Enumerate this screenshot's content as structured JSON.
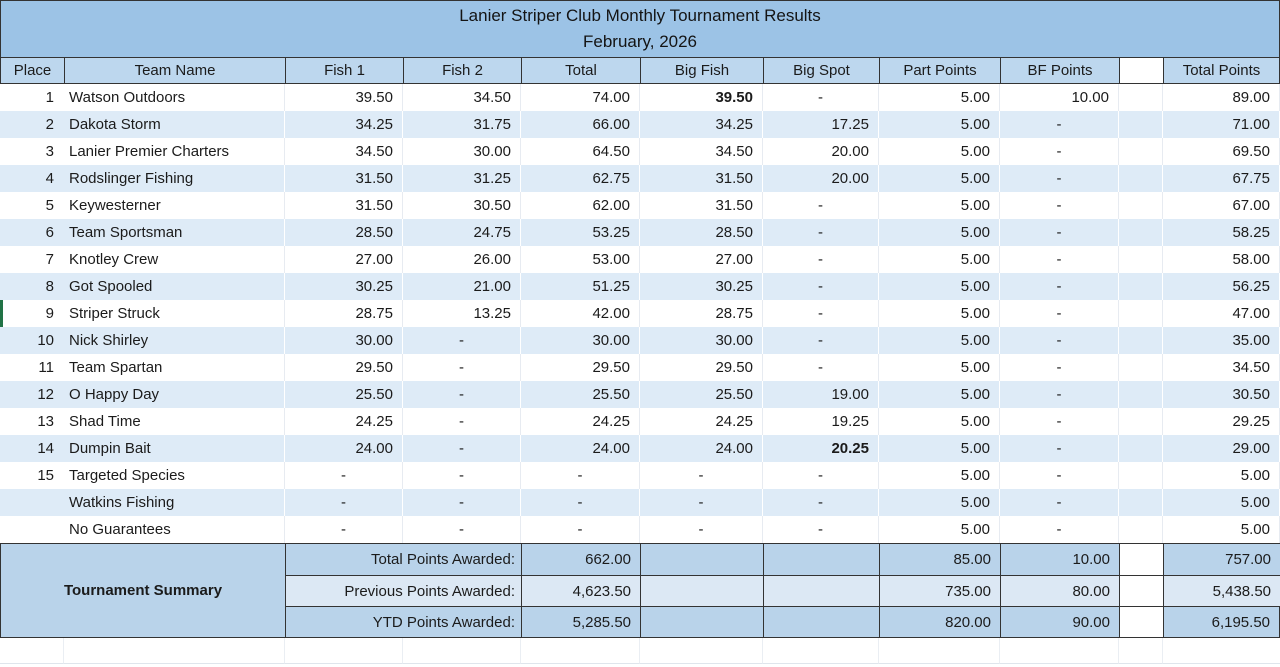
{
  "title": {
    "line1": "Lanier Striper Club Monthly Tournament Results",
    "line2": "February, 2026"
  },
  "columns": [
    "Place",
    "Team Name",
    "Fish 1",
    "Fish 2",
    "Total",
    "Big Fish",
    "Big Spot",
    "Part Points",
    "BF Points",
    "",
    "Total Points"
  ],
  "rows": [
    {
      "place": "1",
      "team": "Watson Outdoors",
      "fish1": "39.50",
      "fish2": "34.50",
      "total": "74.00",
      "big_fish": "39.50",
      "big_fish_bold": true,
      "big_spot": "-",
      "part_points": "5.00",
      "bf_points": "10.00",
      "total_points": "89.00"
    },
    {
      "place": "2",
      "team": "Dakota Storm",
      "fish1": "34.25",
      "fish2": "31.75",
      "total": "66.00",
      "big_fish": "34.25",
      "big_spot": "17.25",
      "part_points": "5.00",
      "bf_points": "-",
      "total_points": "71.00"
    },
    {
      "place": "3",
      "team": "Lanier Premier Charters",
      "fish1": "34.50",
      "fish2": "30.00",
      "total": "64.50",
      "big_fish": "34.50",
      "big_spot": "20.00",
      "part_points": "5.00",
      "bf_points": "-",
      "total_points": "69.50"
    },
    {
      "place": "4",
      "team": "Rodslinger Fishing",
      "fish1": "31.50",
      "fish2": "31.25",
      "total": "62.75",
      "big_fish": "31.50",
      "big_spot": "20.00",
      "part_points": "5.00",
      "bf_points": "-",
      "total_points": "67.75"
    },
    {
      "place": "5",
      "team": "Keywesterner",
      "fish1": "31.50",
      "fish2": "30.50",
      "total": "62.00",
      "big_fish": "31.50",
      "big_spot": "-",
      "part_points": "5.00",
      "bf_points": "-",
      "total_points": "67.00"
    },
    {
      "place": "6",
      "team": "Team Sportsman",
      "fish1": "28.50",
      "fish2": "24.75",
      "total": "53.25",
      "big_fish": "28.50",
      "big_spot": "-",
      "part_points": "5.00",
      "bf_points": "-",
      "total_points": "58.25"
    },
    {
      "place": "7",
      "team": "Knotley Crew",
      "fish1": "27.00",
      "fish2": "26.00",
      "total": "53.00",
      "big_fish": "27.00",
      "big_spot": "-",
      "part_points": "5.00",
      "bf_points": "-",
      "total_points": "58.00"
    },
    {
      "place": "8",
      "team": "Got Spooled",
      "fish1": "30.25",
      "fish2": "21.00",
      "total": "51.25",
      "big_fish": "30.25",
      "big_spot": "-",
      "part_points": "5.00",
      "bf_points": "-",
      "total_points": "56.25"
    },
    {
      "place": "9",
      "team": "Striper Struck",
      "fish1": "28.75",
      "fish2": "13.25",
      "total": "42.00",
      "big_fish": "28.75",
      "big_spot": "-",
      "part_points": "5.00",
      "bf_points": "-",
      "total_points": "47.00"
    },
    {
      "place": "10",
      "team": "Nick Shirley",
      "fish1": "30.00",
      "fish2": "-",
      "total": "30.00",
      "big_fish": "30.00",
      "big_spot": "-",
      "part_points": "5.00",
      "bf_points": "-",
      "total_points": "35.00"
    },
    {
      "place": "11",
      "team": "Team Spartan",
      "fish1": "29.50",
      "fish2": "-",
      "total": "29.50",
      "big_fish": "29.50",
      "big_spot": "-",
      "part_points": "5.00",
      "bf_points": "-",
      "total_points": "34.50"
    },
    {
      "place": "12",
      "team": "O Happy Day",
      "fish1": "25.50",
      "fish2": "-",
      "total": "25.50",
      "big_fish": "25.50",
      "big_spot": "19.00",
      "part_points": "5.00",
      "bf_points": "-",
      "total_points": "30.50"
    },
    {
      "place": "13",
      "team": "Shad Time",
      "fish1": "24.25",
      "fish2": "-",
      "total": "24.25",
      "big_fish": "24.25",
      "big_spot": "19.25",
      "part_points": "5.00",
      "bf_points": "-",
      "total_points": "29.25"
    },
    {
      "place": "14",
      "team": "Dumpin Bait",
      "fish1": "24.00",
      "fish2": "-",
      "total": "24.00",
      "big_fish": "24.00",
      "big_spot": "20.25",
      "big_spot_bold": true,
      "part_points": "5.00",
      "bf_points": "-",
      "total_points": "29.00"
    },
    {
      "place": "15",
      "team": "Targeted Species",
      "fish1": "-",
      "fish2": "-",
      "total": "-",
      "big_fish": "-",
      "big_spot": "-",
      "part_points": "5.00",
      "bf_points": "-",
      "total_points": "5.00"
    },
    {
      "place": "",
      "team": "Watkins Fishing",
      "fish1": "-",
      "fish2": "-",
      "total": "-",
      "big_fish": "-",
      "big_spot": "-",
      "part_points": "5.00",
      "bf_points": "-",
      "total_points": "5.00"
    },
    {
      "place": "",
      "team": "No Guarantees",
      "fish1": "-",
      "fish2": "-",
      "total": "-",
      "big_fish": "-",
      "big_spot": "-",
      "part_points": "5.00",
      "bf_points": "-",
      "total_points": "5.00"
    }
  ],
  "summary": {
    "title": "Tournament Summary",
    "rows": [
      {
        "label": "Total Points Awarded:",
        "total": "662.00",
        "part_points": "85.00",
        "bf_points": "10.00",
        "total_points": "757.00"
      },
      {
        "label": "Previous Points Awarded:",
        "total": "4,623.50",
        "part_points": "735.00",
        "bf_points": "80.00",
        "total_points": "5,438.50"
      },
      {
        "label": "YTD Points Awarded:",
        "total": "5,285.50",
        "part_points": "820.00",
        "bf_points": "90.00",
        "total_points": "6,195.50"
      }
    ]
  },
  "colors": {
    "title_bg": "#9cc3e6",
    "header_bg": "#bdd7ee",
    "band_bg": "#deebf7",
    "summary_bg": "#b9d3ea",
    "summary_alt_bg": "#dce8f4",
    "border_dark": "#333333",
    "grid_line": "#e7ebf1",
    "text": "#1b1b1b",
    "selection_green": "#217346"
  }
}
